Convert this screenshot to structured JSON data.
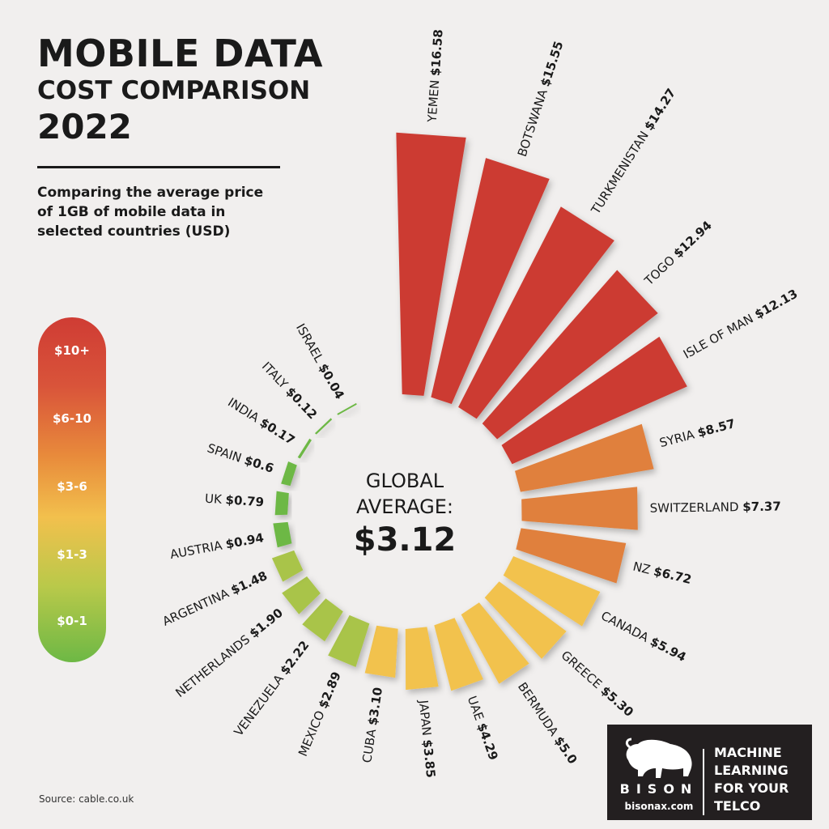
{
  "title": {
    "line1": "MOBILE DATA",
    "line2": "COST COMPARISON",
    "line3": "2022"
  },
  "subtitle": "Comparing the average price of 1GB of mobile data in selected countries (USD)",
  "legend": [
    {
      "label": "$10+",
      "color": "#cc3b33"
    },
    {
      "label": "$6-10",
      "color": "#e0803d"
    },
    {
      "label": "$3-6",
      "color": "#f2c24e"
    },
    {
      "label": "$1-3",
      "color": "#a9c44a"
    },
    {
      "label": "$0-1",
      "color": "#6db845"
    }
  ],
  "center": {
    "line1": "GLOBAL",
    "line2": "AVERAGE:",
    "value": "$3.12"
  },
  "source": "Source: cable.co.uk",
  "brand": {
    "name": "BISON",
    "url": "bisonax.com",
    "tagline": [
      "MACHINE",
      "LEARNING",
      "FOR YOUR",
      "TELCO"
    ]
  },
  "chart_data": {
    "type": "radial-bar",
    "unit": "USD per 1GB",
    "categories": [
      "YEMEN",
      "BOTSWANA",
      "TURKMENISTAN",
      "TOGO",
      "ISLE OF MAN",
      "SYRIA",
      "SWITZERLAND",
      "NZ",
      "CANADA",
      "GREECE",
      "BERMUDA",
      "UAE",
      "JAPAN",
      "CUBA",
      "MEXICO",
      "VENEZUELA",
      "NETHERLANDS",
      "ARGENTINA",
      "AUSTRIA",
      "UK",
      "SPAIN",
      "INDIA",
      "ITALY",
      "ISRAEL"
    ],
    "labels": [
      "$16.58",
      "$15.55",
      "$14.27",
      "$12.94",
      "$12.13",
      "$8.57",
      "$7.37",
      "$6.72",
      "$5.94",
      "$5.30",
      "$5.0",
      "$4.29",
      "$3.85",
      "$3.10",
      "$2.89",
      "$2.22",
      "$1.90",
      "$1.48",
      "$0.94",
      "$0.79",
      "$0.6",
      "$0.17",
      "$0.12",
      "$0.04"
    ],
    "values": [
      16.58,
      15.55,
      14.27,
      12.94,
      12.13,
      8.57,
      7.37,
      6.72,
      5.94,
      5.3,
      5.0,
      4.29,
      3.85,
      3.1,
      2.89,
      2.22,
      1.9,
      1.48,
      0.94,
      0.79,
      0.6,
      0.17,
      0.12,
      0.04
    ],
    "global_average": 3.12
  }
}
